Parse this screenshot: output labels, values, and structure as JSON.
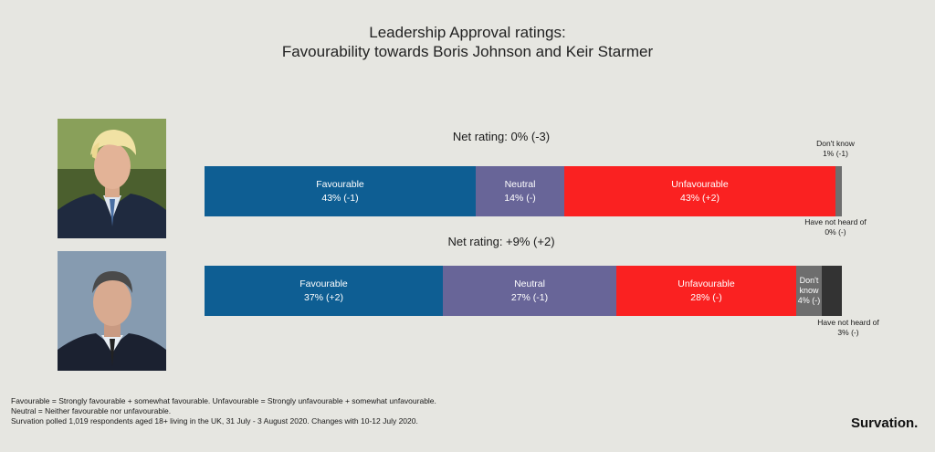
{
  "header": {
    "title_line1": "Leadership Approval ratings:",
    "title_line2": "Favourability towards Boris Johnson and Keir Starmer"
  },
  "colors": {
    "favourable": "#0e5e93",
    "neutral": "#686598",
    "unfavourable": "#fa2121",
    "dont_know": "#6e6e6e",
    "not_heard": "#333333"
  },
  "rows": [
    {
      "net": "Net rating: 0% (-3)",
      "notes": {
        "dont_know_line1": "Don't know",
        "dont_know_line2": "1% (-1)",
        "not_heard_line1": "Have not heard of",
        "not_heard_line2": "0% (-)"
      }
    },
    {
      "net": "Net rating: +9% (+2)",
      "notes": {
        "not_heard_line1": "Have not heard of",
        "not_heard_line2": "3% (-)"
      }
    }
  ],
  "chart_data": {
    "type": "bar",
    "orientation": "horizontal-stacked",
    "categories": [
      "Boris Johnson",
      "Keir Starmer"
    ],
    "series": [
      {
        "name": "Favourable",
        "values": [
          43,
          37
        ],
        "labels": [
          "43% (-1)",
          "37% (+2)"
        ]
      },
      {
        "name": "Neutral",
        "values": [
          14,
          27
        ],
        "labels": [
          "14% (-)",
          "27% (-1)"
        ]
      },
      {
        "name": "Unfavourable",
        "values": [
          43,
          28
        ],
        "labels": [
          "43% (+2)",
          "28% (-)"
        ]
      },
      {
        "name": "Don't know",
        "values": [
          1,
          4
        ],
        "labels": [
          "1% (-1)",
          "4% (-)"
        ]
      },
      {
        "name": "Have not heard of",
        "values": [
          0,
          3
        ],
        "labels": [
          "0% (-)",
          "3% (-)"
        ]
      }
    ],
    "title": "Leadership Approval ratings: Favourability towards Boris Johnson and Keir Starmer",
    "xlim": [
      0,
      100
    ],
    "legend": "none"
  },
  "footer": {
    "line1": "Favourable = Strongly favourable + somewhat favourable. Unfavourable = Strongly unfavourable + somewhat unfavourable.",
    "line2": "Neutral = Neither favourable nor unfavourable.",
    "line3": "Survation polled 1,019 respondents aged 18+ living in the UK, 31 July - 3 August 2020. Changes with 10-12 July 2020."
  },
  "brand": "Survation."
}
